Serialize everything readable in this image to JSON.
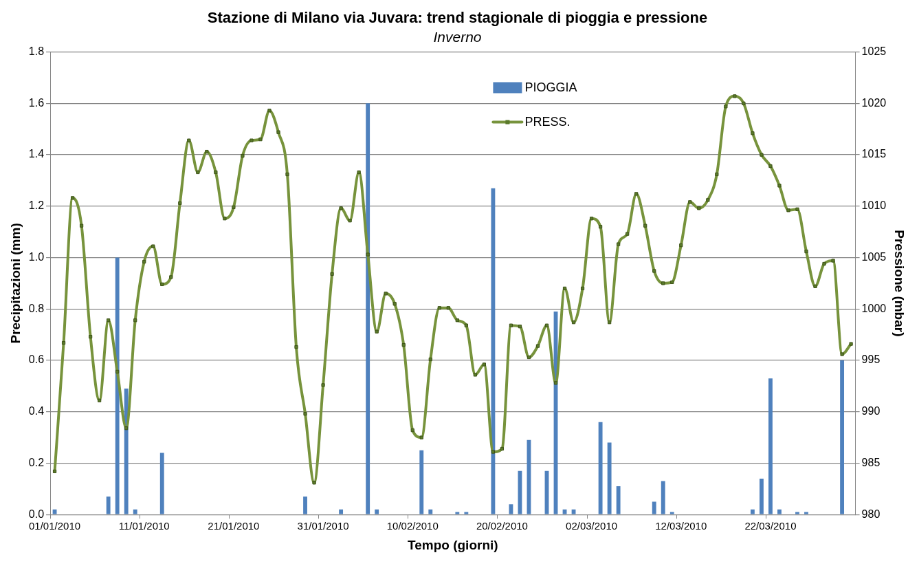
{
  "chart_data": {
    "type": "bar",
    "title": "Stazione di Milano via Juvara: trend stagionale di pioggia e pressione",
    "subtitle": "Inverno",
    "xlabel": "Tempo (giorni)",
    "ylabel": "Precipitazioni (mm)",
    "y2label": "Pressione (mbar)",
    "categories": [
      "01/01/2010",
      null,
      null,
      null,
      null,
      null,
      null,
      null,
      null,
      null,
      "11/01/2010",
      null,
      null,
      null,
      null,
      null,
      null,
      null,
      null,
      null,
      "21/01/2010",
      null,
      null,
      null,
      null,
      null,
      null,
      null,
      null,
      null,
      "31/01/2010",
      null,
      null,
      null,
      null,
      null,
      null,
      null,
      null,
      null,
      "10/02/2010",
      null,
      null,
      null,
      null,
      null,
      null,
      null,
      null,
      null,
      "20/02/2010",
      null,
      null,
      null,
      null,
      null,
      null,
      null,
      null,
      null,
      "02/03/2010",
      null,
      null,
      null,
      null,
      null,
      null,
      null,
      null,
      null,
      "12/03/2010",
      null,
      null,
      null,
      null,
      null,
      null,
      null,
      null,
      null,
      "22/03/2010",
      null,
      null,
      null,
      null,
      null,
      null,
      null,
      null,
      null
    ],
    "series": [
      {
        "name": "PIOGGIA",
        "color": "#4f81bd",
        "values": [
          0.02,
          0,
          0,
          0,
          0,
          0,
          0.07,
          1.0,
          0.49,
          0.02,
          0,
          0,
          0.24,
          0,
          0,
          0,
          0,
          0,
          0,
          0,
          0,
          0,
          0,
          0,
          0,
          0,
          0,
          0,
          0.07,
          0,
          0,
          0,
          0.02,
          0,
          0,
          1.6,
          0.02,
          0,
          0,
          0,
          0,
          0.25,
          0.02,
          0,
          0,
          0.01,
          0.01,
          0,
          0,
          1.27,
          0,
          0.04,
          0.17,
          0.29,
          0,
          0.17,
          0.79,
          0.02,
          0.02,
          0,
          0,
          0.36,
          0.28,
          0.11,
          0,
          0,
          0,
          0.05,
          0.13,
          0.01,
          0,
          0,
          0,
          0,
          0,
          0,
          0,
          0,
          0.02,
          0.14,
          0.53,
          0.02,
          0,
          0.01,
          0.01,
          0,
          0,
          0,
          0.6,
          0
        ]
      },
      {
        "name": "PRESS.",
        "type": "line",
        "axis": "y2",
        "color": "#77933c",
        "marker": "square",
        "values": [
          984.2,
          996.7,
          1010.8,
          1008.1,
          997.3,
          991.1,
          998.9,
          993.9,
          988.4,
          998.9,
          1004.6,
          1006.1,
          1002.4,
          1003.1,
          1010.3,
          1016.4,
          1013.3,
          1015.3,
          1013.3,
          1008.8,
          1009.9,
          1014.9,
          1016.4,
          1016.5,
          1019.3,
          1017.2,
          1013.1,
          996.3,
          989.8,
          983.1,
          992.6,
          1003.4,
          1009.8,
          1008.6,
          1013.3,
          1005.3,
          997.8,
          1001.5,
          1000.5,
          996.5,
          988.2,
          987.5,
          995.1,
          1000.1,
          1000.1,
          998.9,
          998.4,
          993.6,
          994.6,
          986.1,
          986.4,
          998.4,
          998.3,
          995.3,
          996.4,
          998.4,
          992.8,
          1002.0,
          998.7,
          1002.0,
          1008.8,
          1008.0,
          998.7,
          1006.3,
          1007.3,
          1011.2,
          1008.1,
          1003.7,
          1002.5,
          1002.6,
          1006.2,
          1010.4,
          1009.8,
          1010.6,
          1013.1,
          1019.7,
          1020.7,
          1020.0,
          1017.1,
          1015.0,
          1013.9,
          1012.0,
          1009.6,
          1009.7,
          1005.6,
          1002.2,
          1004.4,
          1004.7,
          995.6,
          996.6
        ]
      }
    ],
    "ylim": [
      0,
      1.8
    ],
    "yticks": [
      {
        "value": 0,
        "label": "0.0"
      },
      0.2,
      0.4,
      0.6,
      0.8,
      {
        "value": 1,
        "label": "1.0"
      },
      1.2,
      1.4,
      1.6,
      1.8
    ],
    "y2lim": [
      980,
      1025
    ],
    "y2ticks": [
      980,
      985,
      990,
      995,
      1000,
      1005,
      1010,
      1015,
      1020,
      1025
    ],
    "grid": "y",
    "legend": "top"
  }
}
